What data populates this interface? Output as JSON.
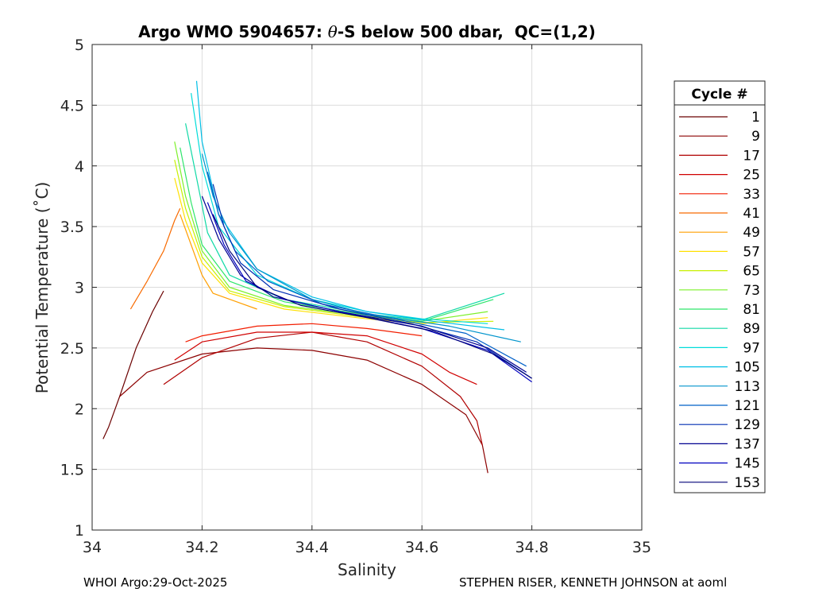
{
  "chart_data": {
    "type": "line",
    "title_prefix": "Argo WMO 5904657: ",
    "title_theta": "θ",
    "title_suffix": "-S below 500 dbar,  QC=(1,2)",
    "xlabel": "Salinity",
    "ylabel": "Potential Temperature (˚C)",
    "xlim": [
      34,
      35
    ],
    "ylim": [
      1,
      5
    ],
    "x_ticks": [
      "34",
      "34.2",
      "34.4",
      "34.6",
      "34.8",
      "35"
    ],
    "y_ticks": [
      "1",
      "1.5",
      "2",
      "2.5",
      "3",
      "3.5",
      "4",
      "4.5",
      "5"
    ],
    "grid": true,
    "legend_title": "Cycle #",
    "legend_position": "outside-right",
    "series": [
      {
        "name": "1",
        "color": "#6b0000",
        "x": [
          34.02,
          34.03,
          34.05,
          34.08,
          34.11,
          34.13
        ],
        "y": [
          1.75,
          1.85,
          2.1,
          2.5,
          2.8,
          2.97
        ]
      },
      {
        "name": "9",
        "color": "#8c0000",
        "x": [
          34.05,
          34.1,
          34.2,
          34.3,
          34.4,
          34.5,
          34.6,
          34.68,
          34.71,
          34.72
        ],
        "y": [
          2.1,
          2.3,
          2.45,
          2.5,
          2.48,
          2.4,
          2.2,
          1.95,
          1.7,
          1.47
        ]
      },
      {
        "name": "17",
        "color": "#b00000",
        "x": [
          34.13,
          34.2,
          34.3,
          34.4,
          34.5,
          34.6,
          34.67,
          34.7,
          34.71
        ],
        "y": [
          2.2,
          2.42,
          2.58,
          2.63,
          2.55,
          2.35,
          2.1,
          1.9,
          1.7
        ]
      },
      {
        "name": "25",
        "color": "#d00000",
        "x": [
          34.15,
          34.2,
          34.3,
          34.4,
          34.5,
          34.6,
          34.65,
          34.7
        ],
        "y": [
          2.4,
          2.55,
          2.63,
          2.63,
          2.6,
          2.45,
          2.3,
          2.2
        ]
      },
      {
        "name": "33",
        "color": "#f21d00",
        "x": [
          34.17,
          34.2,
          34.3,
          34.4,
          34.5,
          34.6
        ],
        "y": [
          2.55,
          2.6,
          2.68,
          2.7,
          2.66,
          2.6
        ]
      },
      {
        "name": "41",
        "color": "#f86a00",
        "x": [
          34.07,
          34.1,
          34.13,
          34.15,
          34.16
        ],
        "y": [
          2.82,
          3.05,
          3.3,
          3.55,
          3.65
        ]
      },
      {
        "name": "49",
        "color": "#ff9f00",
        "x": [
          34.16,
          34.18,
          34.2,
          34.22,
          34.3
        ],
        "y": [
          3.6,
          3.35,
          3.1,
          2.95,
          2.82
        ]
      },
      {
        "name": "57",
        "color": "#ffe000",
        "x": [
          34.15,
          34.17,
          34.2,
          34.25,
          34.35,
          34.5,
          34.6,
          34.72
        ],
        "y": [
          3.9,
          3.55,
          3.2,
          2.95,
          2.82,
          2.74,
          2.7,
          2.75
        ]
      },
      {
        "name": "65",
        "color": "#c8f000",
        "x": [
          34.15,
          34.17,
          34.2,
          34.25,
          34.35,
          34.5,
          34.6,
          34.73
        ],
        "y": [
          4.05,
          3.65,
          3.25,
          2.97,
          2.84,
          2.75,
          2.71,
          2.72
        ]
      },
      {
        "name": "73",
        "color": "#7df02a",
        "x": [
          34.15,
          34.17,
          34.2,
          34.25,
          34.35,
          34.5,
          34.6,
          34.72
        ],
        "y": [
          4.2,
          3.75,
          3.3,
          3.0,
          2.85,
          2.76,
          2.72,
          2.8
        ]
      },
      {
        "name": "81",
        "color": "#2ee56b",
        "x": [
          34.16,
          34.18,
          34.2,
          34.25,
          34.35,
          34.5,
          34.6,
          34.73
        ],
        "y": [
          4.15,
          3.7,
          3.35,
          3.05,
          2.88,
          2.77,
          2.72,
          2.9
        ]
      },
      {
        "name": "89",
        "color": "#10d9a6",
        "x": [
          34.17,
          34.19,
          34.21,
          34.25,
          34.35,
          34.5,
          34.6,
          34.75
        ],
        "y": [
          4.35,
          3.9,
          3.45,
          3.1,
          2.9,
          2.78,
          2.73,
          2.95
        ]
      },
      {
        "name": "97",
        "color": "#00dcd9",
        "x": [
          34.18,
          34.2,
          34.23,
          34.3,
          34.4,
          34.5,
          34.6,
          34.72
        ],
        "y": [
          4.6,
          4.0,
          3.5,
          3.1,
          2.9,
          2.8,
          2.74,
          2.7
        ]
      },
      {
        "name": "105",
        "color": "#00bfe6",
        "x": [
          34.19,
          34.2,
          34.23,
          34.3,
          34.4,
          34.5,
          34.62,
          34.75
        ],
        "y": [
          4.7,
          4.2,
          3.6,
          3.15,
          2.92,
          2.8,
          2.72,
          2.65
        ]
      },
      {
        "name": "113",
        "color": "#0094cc",
        "x": [
          34.2,
          34.22,
          34.25,
          34.3,
          34.4,
          34.5,
          34.65,
          34.78
        ],
        "y": [
          4.1,
          3.75,
          3.45,
          3.15,
          2.9,
          2.78,
          2.68,
          2.55
        ]
      },
      {
        "name": "121",
        "color": "#0060c8",
        "x": [
          34.21,
          34.23,
          34.26,
          34.32,
          34.42,
          34.55,
          34.68,
          34.79
        ],
        "y": [
          3.95,
          3.6,
          3.3,
          3.05,
          2.86,
          2.74,
          2.62,
          2.35
        ]
      },
      {
        "name": "129",
        "color": "#002fb3",
        "x": [
          34.22,
          34.24,
          34.27,
          34.33,
          34.45,
          34.58,
          34.7,
          34.8
        ],
        "y": [
          3.85,
          3.5,
          3.2,
          2.98,
          2.82,
          2.7,
          2.55,
          2.25
        ]
      },
      {
        "name": "137",
        "color": "#000090",
        "x": [
          34.2,
          34.23,
          34.27,
          34.33,
          34.45,
          34.6,
          34.72,
          34.79
        ],
        "y": [
          3.75,
          3.4,
          3.1,
          2.92,
          2.8,
          2.68,
          2.5,
          2.3
        ]
      },
      {
        "name": "145",
        "color": "#0000c0",
        "x": [
          34.21,
          34.24,
          34.28,
          34.35,
          34.47,
          34.6,
          34.72,
          34.8
        ],
        "y": [
          3.7,
          3.35,
          3.05,
          2.9,
          2.78,
          2.66,
          2.48,
          2.22
        ]
      },
      {
        "name": "153",
        "color": "#000078",
        "x": [
          34.22,
          34.25,
          34.3,
          34.38,
          34.5,
          34.62,
          34.73,
          34.8
        ],
        "y": [
          3.6,
          3.3,
          3.0,
          2.85,
          2.75,
          2.64,
          2.45,
          2.25
        ]
      }
    ]
  },
  "footer": {
    "left": "WHOI Argo:29-Oct-2025",
    "right": "STEPHEN RISER, KENNETH JOHNSON at aoml"
  }
}
